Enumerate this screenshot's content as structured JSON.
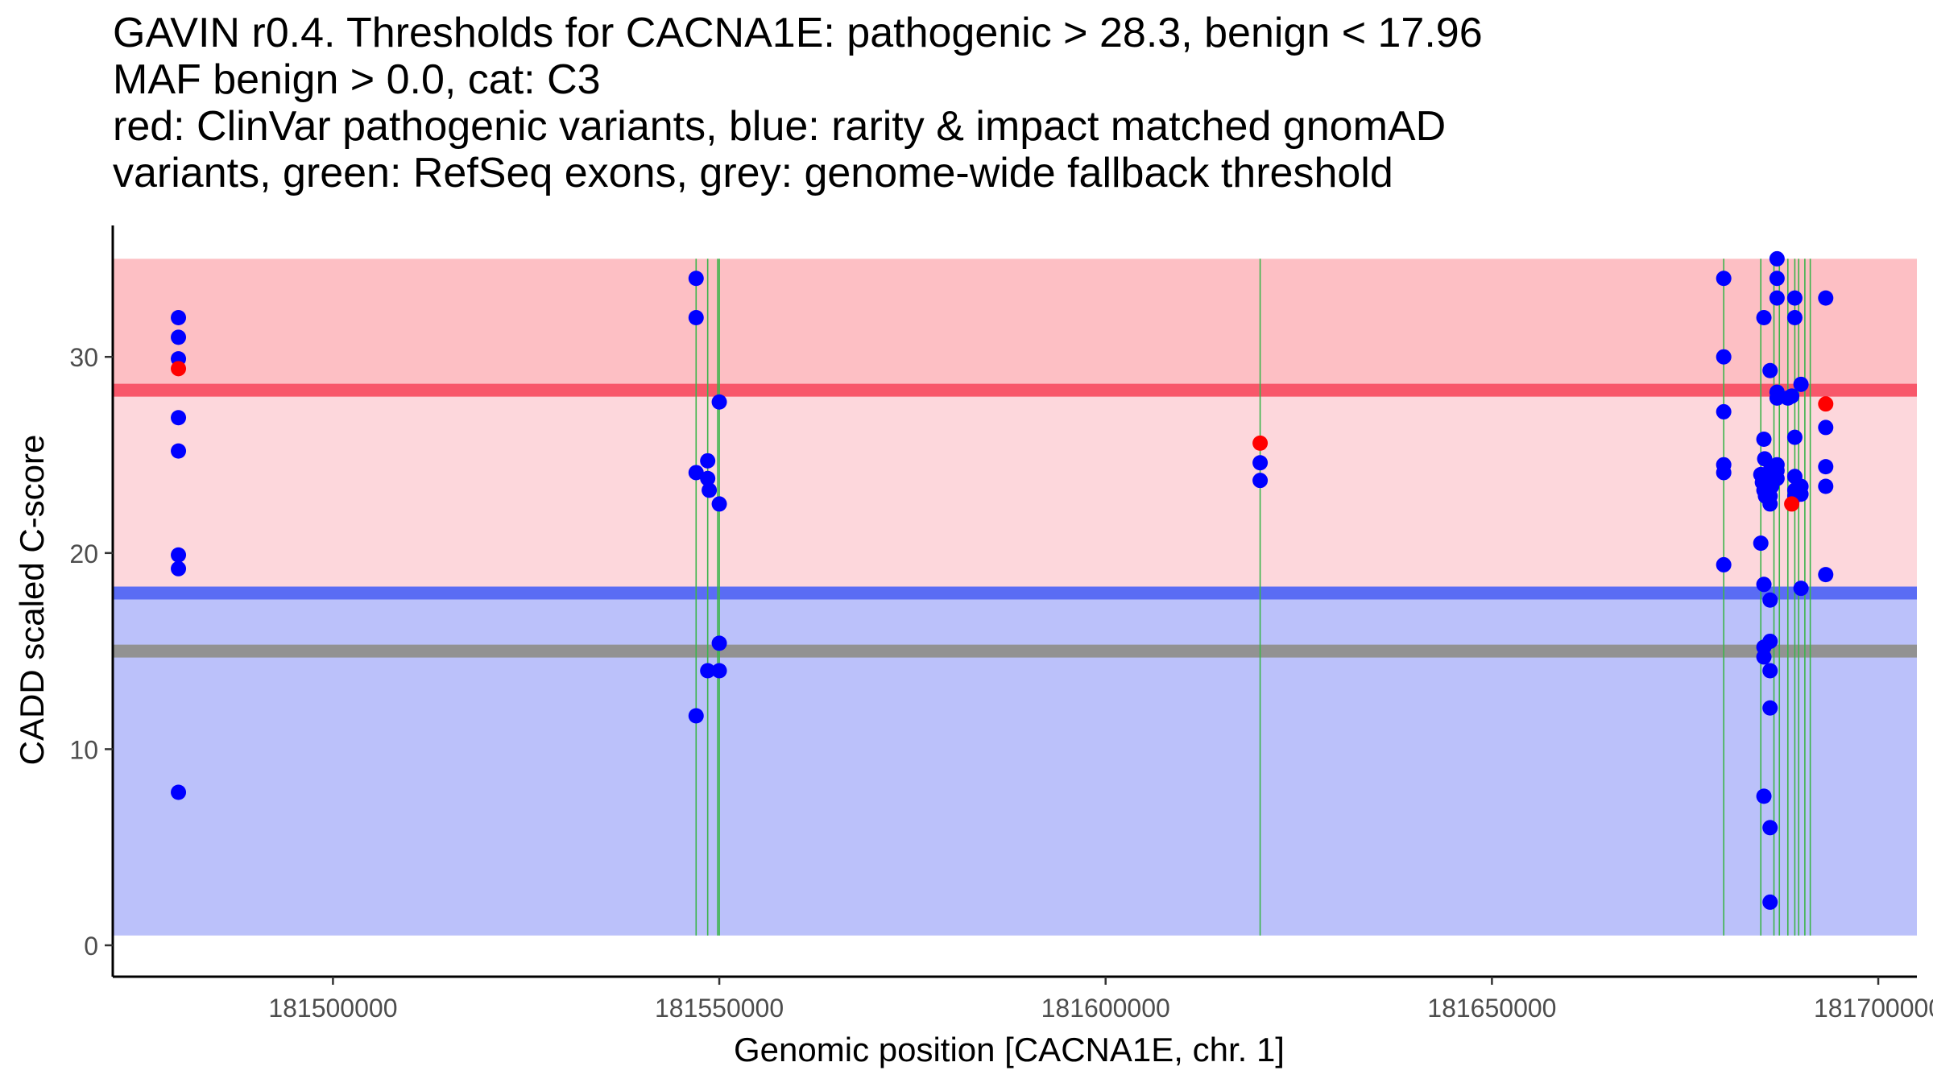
{
  "title_lines": [
    "GAVIN r0.4. Thresholds for CACNA1E: pathogenic > 28.3, benign < 17.96",
    "MAF benign > 0.0, cat: C3",
    "red: ClinVar pathogenic variants, blue: rarity & impact matched gnomAD",
    "variants, green: RefSeq exons, grey: genome-wide fallback threshold"
  ],
  "colors": {
    "pathogenic_band": "#fdbfc4",
    "pathogenic_zone": "#fdd7dc",
    "benign_zone": "#bbc1fa",
    "pathogenic_line": "#f8576a",
    "benign_line": "#5a6cf4",
    "fallback_line": "#929292",
    "exon_line": "#3cb44b",
    "gnomad_point": "#0000ff",
    "clinvar_point": "#ff0000"
  },
  "chart_data": {
    "type": "scatter",
    "title": "GAVIN r0.4. Thresholds for CACNA1E: pathogenic > 28.3, benign < 17.96 MAF benign > 0.0, cat: C3 red: ClinVar pathogenic variants, blue: rarity & impact matched gnomAD variants, green: RefSeq exons, grey: genome-wide fallback threshold",
    "xlabel": "Genomic position [CACNA1E, chr. 1]",
    "ylabel": "CADD scaled C-score",
    "xlim": [
      181471500,
      181705000
    ],
    "ylim": [
      -1.6,
      36.7
    ],
    "xticks": [
      181500000,
      181550000,
      181600000,
      181650000,
      181700000
    ],
    "xtick_labels": [
      "181500000",
      "181550000",
      "181600000",
      "181650000",
      "181700000"
    ],
    "yticks": [
      0,
      10,
      20,
      30
    ],
    "ytick_labels": [
      "0",
      "10",
      "20",
      "30"
    ],
    "thresholds": {
      "pathogenic": 28.3,
      "benign": 17.96,
      "fallback": 15.0
    },
    "band_range": {
      "x": [
        181471500,
        181705000
      ],
      "y": [
        0.5,
        35
      ]
    },
    "exons": [
      181547000,
      181548500,
      181549800,
      181550000,
      181620000,
      181680000,
      181684800,
      181686500,
      181687200,
      181688300,
      181689200,
      181689700,
      181690500,
      181691200
    ],
    "series": [
      {
        "name": "gnomAD",
        "color": "#0000ff",
        "points": [
          [
            181480000,
            32
          ],
          [
            181480000,
            31
          ],
          [
            181480000,
            29.9
          ],
          [
            181480000,
            26.9
          ],
          [
            181480000,
            25.2
          ],
          [
            181480000,
            19.9
          ],
          [
            181480000,
            19.2
          ],
          [
            181480000,
            7.8
          ],
          [
            181547000,
            34
          ],
          [
            181547000,
            32
          ],
          [
            181547000,
            24.1
          ],
          [
            181547000,
            11.7
          ],
          [
            181548500,
            24.7
          ],
          [
            181548500,
            23.8
          ],
          [
            181548700,
            23.2
          ],
          [
            181548500,
            14
          ],
          [
            181550000,
            27.7
          ],
          [
            181550000,
            22.5
          ],
          [
            181550000,
            15.4
          ],
          [
            181550000,
            14
          ],
          [
            181620000,
            24.6
          ],
          [
            181620000,
            23.7
          ],
          [
            181680000,
            34
          ],
          [
            181680000,
            30
          ],
          [
            181680000,
            27.2
          ],
          [
            181680000,
            24.5
          ],
          [
            181680000,
            24.1
          ],
          [
            181680000,
            19.4
          ],
          [
            181684800,
            20.5
          ],
          [
            181685200,
            32
          ],
          [
            181685200,
            25.8
          ],
          [
            181685300,
            24.8
          ],
          [
            181684800,
            24
          ],
          [
            181685000,
            23.6
          ],
          [
            181685200,
            23.2
          ],
          [
            181685400,
            22.9
          ],
          [
            181685200,
            18.4
          ],
          [
            181685200,
            15.2
          ],
          [
            181685200,
            14.7
          ],
          [
            181685200,
            7.6
          ],
          [
            181686000,
            29.3
          ],
          [
            181686000,
            24.2
          ],
          [
            181686000,
            23.8
          ],
          [
            181686200,
            23.4
          ],
          [
            181686000,
            22.9
          ],
          [
            181686000,
            22.5
          ],
          [
            181686000,
            17.6
          ],
          [
            181686000,
            15.5
          ],
          [
            181686000,
            14
          ],
          [
            181686000,
            12.1
          ],
          [
            181686000,
            6
          ],
          [
            181686000,
            2.2
          ],
          [
            181686900,
            35
          ],
          [
            181686900,
            34
          ],
          [
            181686900,
            33
          ],
          [
            181686900,
            28.2
          ],
          [
            181686900,
            27.9
          ],
          [
            181686900,
            24.5
          ],
          [
            181686900,
            24.2
          ],
          [
            181686900,
            23.8
          ],
          [
            181688300,
            27.9
          ],
          [
            181688800,
            28
          ],
          [
            181689200,
            33
          ],
          [
            181689200,
            32
          ],
          [
            181689200,
            25.9
          ],
          [
            181689200,
            23.9
          ],
          [
            181689200,
            23.2
          ],
          [
            181689200,
            22.9
          ],
          [
            181690000,
            28.6
          ],
          [
            181690000,
            23.4
          ],
          [
            181690000,
            23
          ],
          [
            181690000,
            18.2
          ],
          [
            181693200,
            33
          ],
          [
            181693200,
            26.4
          ],
          [
            181693200,
            24.4
          ],
          [
            181693200,
            23.4
          ],
          [
            181693200,
            18.9
          ]
        ]
      },
      {
        "name": "ClinVar pathogenic",
        "color": "#ff0000",
        "points": [
          [
            181480000,
            29.4
          ],
          [
            181620000,
            25.6
          ],
          [
            181688800,
            22.5
          ],
          [
            181693200,
            27.6
          ]
        ]
      }
    ]
  }
}
